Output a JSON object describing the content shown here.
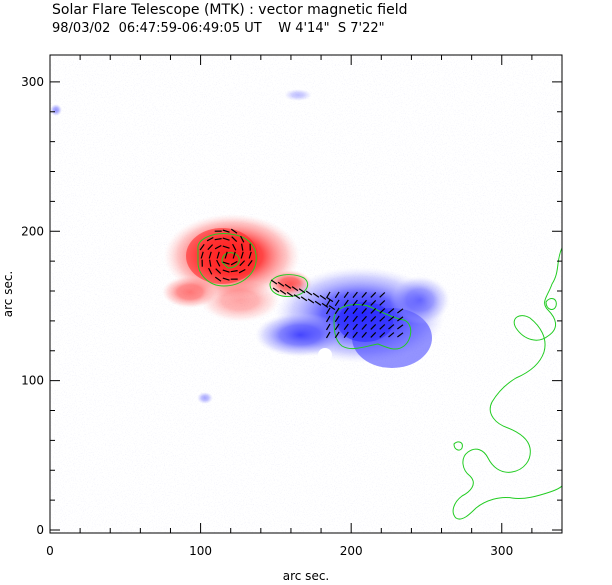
{
  "figure": {
    "title": "Solar Flare Telescope (MTK) : vector magnetic field",
    "subtitle": "98/03/02  06:47:59-06:49:05 UT    W 4'14\"  S 7'22\"",
    "xlabel": "arc sec.",
    "ylabel": "arc sec."
  },
  "axes": {
    "x_ticks": [
      {
        "value": 0,
        "label": "0"
      },
      {
        "value": 100,
        "label": "100"
      },
      {
        "value": 200,
        "label": "200"
      },
      {
        "value": 300,
        "label": "300"
      }
    ],
    "y_ticks": [
      {
        "value": 0,
        "label": "0"
      },
      {
        "value": 100,
        "label": "100"
      },
      {
        "value": 200,
        "label": "200"
      },
      {
        "value": 300,
        "label": "300"
      }
    ],
    "xlim": [
      0,
      340
    ],
    "ylim": [
      -2,
      318
    ]
  },
  "colors": {
    "positive_field": "#ff2a2a",
    "negative_field": "#3333ff",
    "contour": "#22cc22",
    "vector": "#000000",
    "frame": "#000000"
  },
  "regions": {
    "positive_core": {
      "x": 117,
      "y": 184
    },
    "negative_core": {
      "x": 208,
      "y": 140
    }
  }
}
